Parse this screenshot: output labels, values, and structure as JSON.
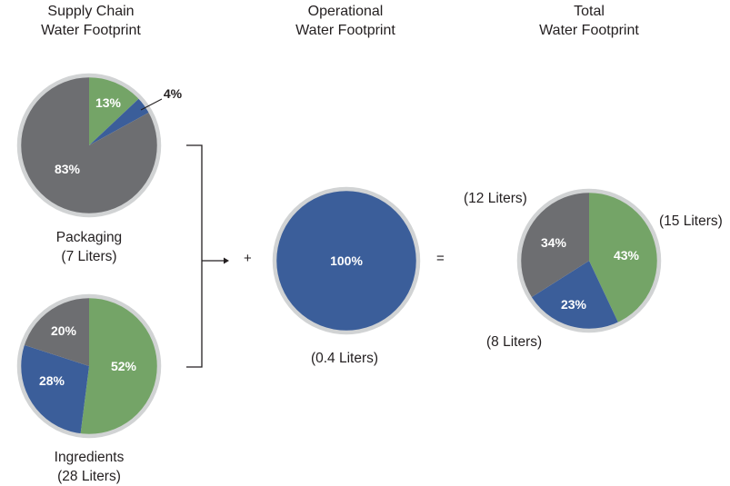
{
  "headings": {
    "supply_chain": [
      "Supply Chain",
      "Water Footprint"
    ],
    "operational": [
      "Operational",
      "Water Footprint"
    ],
    "total": [
      "Total",
      "Water Footprint"
    ]
  },
  "operators": {
    "plus": "+",
    "equals": "="
  },
  "colors": {
    "green": "#74a467",
    "blue": "#3b5e9a",
    "gray": "#6d6e71",
    "ring": "#d1d3d4"
  },
  "chart_data": [
    {
      "type": "pie",
      "name": "Packaging",
      "caption": [
        "Packaging",
        "(7 Liters)"
      ],
      "slices": [
        {
          "label": "13%",
          "value": 13,
          "color": "#74a467"
        },
        {
          "label": "4%",
          "value": 4,
          "color": "#3b5e9a"
        },
        {
          "label": "83%",
          "value": 83,
          "color": "#6d6e71"
        }
      ]
    },
    {
      "type": "pie",
      "name": "Ingredients",
      "caption": [
        "Ingredients",
        "(28 Liters)"
      ],
      "slices": [
        {
          "label": "52%",
          "value": 52,
          "color": "#74a467"
        },
        {
          "label": "28%",
          "value": 28,
          "color": "#3b5e9a"
        },
        {
          "label": "20%",
          "value": 20,
          "color": "#6d6e71"
        }
      ]
    },
    {
      "type": "pie",
      "name": "Operational",
      "caption": [
        "(0.4 Liters)"
      ],
      "slices": [
        {
          "label": "100%",
          "value": 100,
          "color": "#3b5e9a"
        }
      ]
    },
    {
      "type": "pie",
      "name": "Total",
      "caption": [],
      "slices": [
        {
          "label": "43%",
          "value": 43,
          "color": "#74a467",
          "annotation": "(15 Liters)"
        },
        {
          "label": "23%",
          "value": 23,
          "color": "#3b5e9a",
          "annotation": "(8 Liters)"
        },
        {
          "label": "34%",
          "value": 34,
          "color": "#6d6e71",
          "annotation": "(12 Liters)"
        }
      ]
    }
  ]
}
